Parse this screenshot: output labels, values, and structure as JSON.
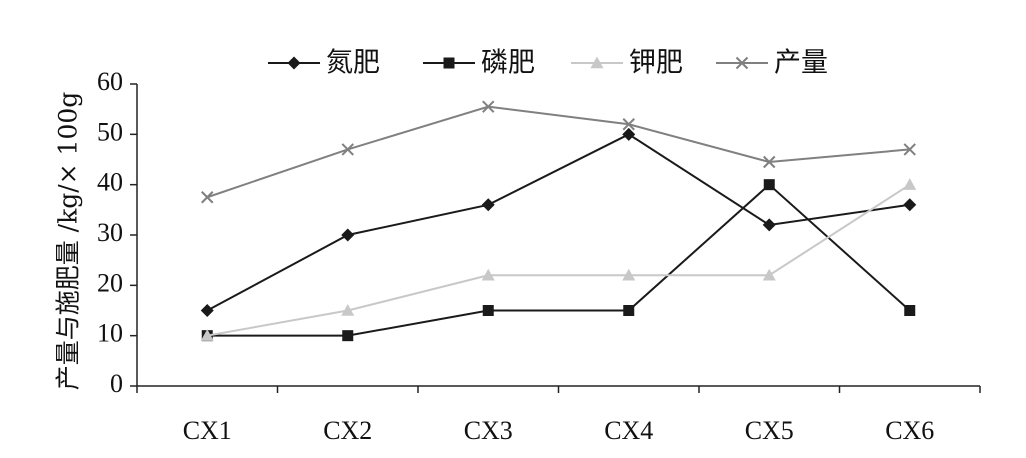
{
  "chart_data": {
    "type": "line",
    "title": "",
    "xlabel": "",
    "ylabel": "产量与施肥量 /kg/× 100g",
    "categories": [
      "CX1",
      "CX2",
      "CX3",
      "CX4",
      "CX5",
      "CX6"
    ],
    "ylim": [
      0,
      60
    ],
    "yticks": [
      0,
      10,
      20,
      30,
      40,
      50,
      60
    ],
    "grid": false,
    "legend_position": "top",
    "series": [
      {
        "name": "氮肥",
        "marker": "diamond",
        "color": "#1a1a1a",
        "values": [
          15,
          30,
          36,
          50,
          32,
          36
        ]
      },
      {
        "name": "磷肥",
        "marker": "square",
        "color": "#1a1a1a",
        "values": [
          10,
          10,
          15,
          15,
          40,
          15
        ]
      },
      {
        "name": "钾肥",
        "marker": "triangle",
        "color": "#c8c8c8",
        "values": [
          10,
          15,
          22,
          22,
          22,
          40
        ]
      },
      {
        "name": "产量",
        "marker": "x",
        "color": "#808080",
        "values": [
          37.5,
          47,
          55.5,
          52,
          44.5,
          47
        ]
      }
    ]
  }
}
